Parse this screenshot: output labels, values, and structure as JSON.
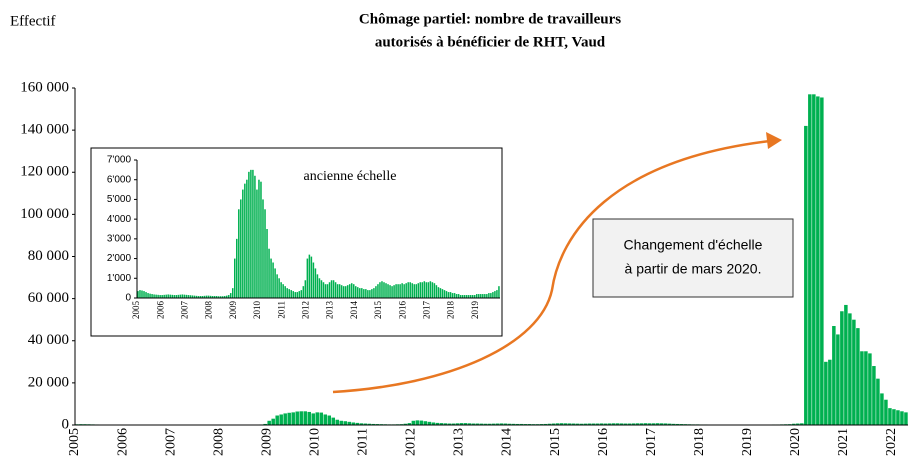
{
  "chart_data": [
    {
      "type": "bar",
      "title": [
        "Chômage partiel: nombre de travailleurs",
        "autorisés à bénéficier de RHT, Vaud"
      ],
      "ylabel": "Effectif",
      "annotation": [
        "Changement d'échelle",
        "à partir de mars 2020."
      ],
      "color": "#00b050",
      "categories": [
        "2005",
        null,
        null,
        null,
        null,
        null,
        null,
        null,
        null,
        null,
        null,
        null,
        "2006",
        null,
        null,
        null,
        null,
        null,
        null,
        null,
        null,
        null,
        null,
        null,
        "2007",
        null,
        null,
        null,
        null,
        null,
        null,
        null,
        null,
        null,
        null,
        null,
        "2008",
        null,
        null,
        null,
        null,
        null,
        null,
        null,
        null,
        null,
        null,
        null,
        "2009",
        null,
        null,
        null,
        null,
        null,
        null,
        null,
        null,
        null,
        null,
        null,
        "2010",
        null,
        null,
        null,
        null,
        null,
        null,
        null,
        null,
        null,
        null,
        null,
        "2011",
        null,
        null,
        null,
        null,
        null,
        null,
        null,
        null,
        null,
        null,
        null,
        "2012",
        null,
        null,
        null,
        null,
        null,
        null,
        null,
        null,
        null,
        null,
        null,
        "2013",
        null,
        null,
        null,
        null,
        null,
        null,
        null,
        null,
        null,
        null,
        null,
        "2014",
        null,
        null,
        null,
        null,
        null,
        null,
        null,
        null,
        null,
        null,
        null,
        "2015",
        null,
        null,
        null,
        null,
        null,
        null,
        null,
        null,
        null,
        null,
        null,
        "2016",
        null,
        null,
        null,
        null,
        null,
        null,
        null,
        null,
        null,
        null,
        null,
        "2017",
        null,
        null,
        null,
        null,
        null,
        null,
        null,
        null,
        null,
        null,
        null,
        "2018",
        null,
        null,
        null,
        null,
        null,
        null,
        null,
        null,
        null,
        null,
        null,
        "2019",
        null,
        null,
        null,
        null,
        null,
        null,
        null,
        null,
        null,
        null,
        null,
        "2020",
        null,
        null,
        null,
        null,
        null,
        null,
        null,
        null,
        null,
        null,
        null,
        "2021",
        null,
        null,
        null,
        null,
        null,
        null,
        null,
        null,
        null,
        null,
        null,
        "2022",
        null,
        null,
        null
      ],
      "values": [
        350,
        400,
        380,
        350,
        300,
        250,
        220,
        200,
        180,
        170,
        160,
        150,
        150,
        160,
        170,
        180,
        170,
        160,
        150,
        150,
        160,
        170,
        180,
        170,
        160,
        150,
        140,
        130,
        120,
        110,
        100,
        100,
        100,
        110,
        120,
        120,
        110,
        100,
        100,
        100,
        90,
        90,
        90,
        100,
        120,
        150,
        250,
        500,
        2000,
        3000,
        4500,
        5000,
        5500,
        5800,
        6000,
        6400,
        6500,
        6500,
        6200,
        5500,
        6000,
        5900,
        5000,
        4500,
        3500,
        2500,
        2000,
        1800,
        1500,
        1200,
        1000,
        800,
        700,
        600,
        500,
        450,
        400,
        350,
        300,
        300,
        350,
        400,
        600,
        900,
        2000,
        2200,
        2100,
        1800,
        1500,
        1200,
        1000,
        900,
        800,
        700,
        700,
        800,
        900,
        900,
        800,
        700,
        700,
        650,
        600,
        600,
        650,
        700,
        750,
        700,
        600,
        550,
        500,
        500,
        450,
        450,
        400,
        400,
        450,
        500,
        600,
        700,
        800,
        850,
        800,
        750,
        700,
        650,
        600,
        650,
        700,
        700,
        700,
        750,
        700,
        750,
        800,
        800,
        750,
        700,
        700,
        750,
        800,
        800,
        850,
        800,
        800,
        850,
        800,
        750,
        650,
        550,
        500,
        450,
        400,
        350,
        300,
        300,
        250,
        250,
        200,
        200,
        150,
        150,
        150,
        150,
        150,
        150,
        150,
        150,
        200,
        200,
        200,
        200,
        200,
        200,
        250,
        250,
        300,
        350,
        400,
        600,
        700,
        800,
        142000,
        157000,
        157000,
        156000,
        155500,
        30000,
        31000,
        47000,
        43000,
        54000,
        57000,
        53000,
        50000,
        46000,
        35000,
        35000,
        34000,
        28000,
        22000,
        15000,
        12000,
        8000,
        7500,
        7000,
        6500,
        6000
      ],
      "ylim": [
        0,
        160000
      ],
      "yticks": [
        0,
        {
          "value": 20000,
          "label": "20 000"
        },
        {
          "value": 40000,
          "label": "40 000"
        },
        {
          "value": 60000,
          "label": "60 000"
        },
        {
          "value": 80000,
          "label": "80 000"
        },
        {
          "value": 100000,
          "label": "100 000"
        },
        {
          "value": 120000,
          "label": "120 000"
        },
        {
          "value": 140000,
          "label": "140 000"
        },
        {
          "value": 160000,
          "label": "160 000"
        }
      ]
    },
    {
      "type": "bar",
      "annotation": "ancienne échelle",
      "color": "#00b050",
      "categories": [
        "2005",
        null,
        null,
        null,
        null,
        null,
        null,
        null,
        null,
        null,
        null,
        null,
        "2006",
        null,
        null,
        null,
        null,
        null,
        null,
        null,
        null,
        null,
        null,
        null,
        "2007",
        null,
        null,
        null,
        null,
        null,
        null,
        null,
        null,
        null,
        null,
        null,
        "2008",
        null,
        null,
        null,
        null,
        null,
        null,
        null,
        null,
        null,
        null,
        null,
        "2009",
        null,
        null,
        null,
        null,
        null,
        null,
        null,
        null,
        null,
        null,
        null,
        "2010",
        null,
        null,
        null,
        null,
        null,
        null,
        null,
        null,
        null,
        null,
        null,
        "2011",
        null,
        null,
        null,
        null,
        null,
        null,
        null,
        null,
        null,
        null,
        null,
        "2012",
        null,
        null,
        null,
        null,
        null,
        null,
        null,
        null,
        null,
        null,
        null,
        "2013",
        null,
        null,
        null,
        null,
        null,
        null,
        null,
        null,
        null,
        null,
        null,
        "2014",
        null,
        null,
        null,
        null,
        null,
        null,
        null,
        null,
        null,
        null,
        null,
        "2015",
        null,
        null,
        null,
        null,
        null,
        null,
        null,
        null,
        null,
        null,
        null,
        "2016",
        null,
        null,
        null,
        null,
        null,
        null,
        null,
        null,
        null,
        null,
        null,
        "2017",
        null,
        null,
        null,
        null,
        null,
        null,
        null,
        null,
        null,
        null,
        null,
        "2018",
        null,
        null,
        null,
        null,
        null,
        null,
        null,
        null,
        null,
        null,
        null,
        "2019",
        null,
        null,
        null,
        null,
        null,
        null,
        null,
        null,
        null,
        null,
        null
      ],
      "values": [
        350,
        400,
        380,
        350,
        300,
        250,
        220,
        200,
        180,
        170,
        160,
        150,
        150,
        160,
        170,
        180,
        170,
        160,
        150,
        150,
        160,
        170,
        180,
        170,
        160,
        150,
        140,
        130,
        120,
        110,
        100,
        100,
        100,
        110,
        120,
        120,
        110,
        100,
        100,
        100,
        90,
        90,
        90,
        100,
        120,
        150,
        250,
        500,
        2000,
        3000,
        4500,
        5000,
        5500,
        5800,
        6000,
        6400,
        6500,
        6500,
        6200,
        5500,
        6000,
        5900,
        5000,
        4500,
        3500,
        2500,
        2000,
        1800,
        1500,
        1200,
        1000,
        800,
        700,
        600,
        500,
        450,
        400,
        350,
        300,
        300,
        350,
        400,
        600,
        900,
        2000,
        2200,
        2100,
        1800,
        1500,
        1200,
        1000,
        900,
        800,
        700,
        700,
        800,
        900,
        900,
        800,
        700,
        700,
        650,
        600,
        600,
        650,
        700,
        750,
        700,
        600,
        550,
        500,
        500,
        450,
        450,
        400,
        400,
        450,
        500,
        600,
        700,
        800,
        850,
        800,
        750,
        700,
        650,
        600,
        650,
        700,
        700,
        700,
        750,
        700,
        750,
        800,
        800,
        750,
        700,
        700,
        750,
        800,
        800,
        850,
        800,
        800,
        850,
        800,
        750,
        650,
        550,
        500,
        450,
        400,
        350,
        300,
        300,
        250,
        250,
        200,
        200,
        150,
        150,
        150,
        150,
        150,
        150,
        150,
        150,
        200,
        200,
        200,
        200,
        200,
        200,
        250,
        250,
        300,
        350,
        400,
        600
      ],
      "ylim": [
        0,
        7000
      ],
      "yticks": [
        0,
        {
          "value": 1000,
          "label": "1'000"
        },
        {
          "value": 2000,
          "label": "2'000"
        },
        {
          "value": 3000,
          "label": "3'000"
        },
        {
          "value": 4000,
          "label": "4'000"
        },
        {
          "value": 5000,
          "label": "5'000"
        },
        {
          "value": 6000,
          "label": "6'000"
        },
        {
          "value": 7000,
          "label": "7'000"
        }
      ]
    }
  ]
}
